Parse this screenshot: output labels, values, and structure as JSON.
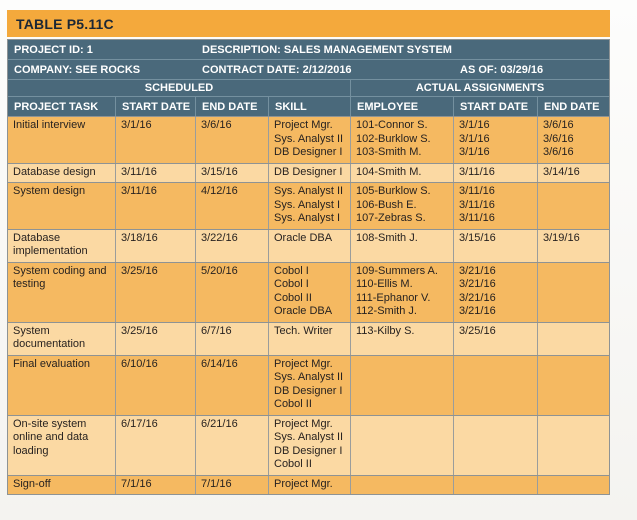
{
  "title": "TABLE P5.11C",
  "info": {
    "project_id": "PROJECT ID: 1",
    "description": "DESCRIPTION: SALES MANAGEMENT SYSTEM",
    "company": "COMPANY: SEE ROCKS",
    "contract_date": "CONTRACT DATE: 2/12/2016",
    "as_of": "AS OF: 03/29/16"
  },
  "groups": {
    "scheduled": "SCHEDULED",
    "actual": "ACTUAL ASSIGNMENTS"
  },
  "columns": [
    "PROJECT TASK",
    "START DATE",
    "END DATE",
    "SKILL",
    "EMPLOYEE",
    "START DATE",
    "END DATE"
  ],
  "rows": [
    {
      "task": "Initial interview",
      "start": "3/1/16",
      "end": "3/6/16",
      "skills": [
        "Project Mgr.",
        "Sys. Analyst II",
        "DB Designer I"
      ],
      "employees": [
        "101-Connor S.",
        "102-Burklow S.",
        "103-Smith M."
      ],
      "actual_start": [
        "3/1/16",
        "3/1/16",
        "3/1/16"
      ],
      "actual_end": [
        "3/6/16",
        "3/6/16",
        "3/6/16"
      ]
    },
    {
      "task": "Database design",
      "start": "3/11/16",
      "end": "3/15/16",
      "skills": [
        "DB Designer I"
      ],
      "employees": [
        "104-Smith M."
      ],
      "actual_start": [
        "3/11/16"
      ],
      "actual_end": [
        "3/14/16"
      ]
    },
    {
      "task": "System design",
      "start": "3/11/16",
      "end": "4/12/16",
      "skills": [
        "Sys. Analyst II",
        "Sys. Analyst I",
        "Sys. Analyst I"
      ],
      "employees": [
        "105-Burklow S.",
        "106-Bush E.",
        "107-Zebras S."
      ],
      "actual_start": [
        "3/11/16",
        "3/11/16",
        "3/11/16"
      ],
      "actual_end": []
    },
    {
      "task": "Database implementation",
      "start": "3/18/16",
      "end": "3/22/16",
      "skills": [
        "Oracle DBA"
      ],
      "employees": [
        "108-Smith J."
      ],
      "actual_start": [
        "3/15/16"
      ],
      "actual_end": [
        "3/19/16"
      ]
    },
    {
      "task": "System coding and testing",
      "start": "3/25/16",
      "end": "5/20/16",
      "skills": [
        "Cobol I",
        "Cobol I",
        "Cobol II",
        "Oracle DBA"
      ],
      "employees": [
        "109-Summers A.",
        "110-Ellis M.",
        "111-Ephanor V.",
        "112-Smith J."
      ],
      "actual_start": [
        "3/21/16",
        "3/21/16",
        "3/21/16",
        "3/21/16"
      ],
      "actual_end": []
    },
    {
      "task": "System documentation",
      "start": "3/25/16",
      "end": "6/7/16",
      "skills": [
        "Tech. Writer"
      ],
      "employees": [
        "113-Kilby S."
      ],
      "actual_start": [
        "3/25/16"
      ],
      "actual_end": []
    },
    {
      "task": "Final evaluation",
      "start": "6/10/16",
      "end": "6/14/16",
      "skills": [
        "Project Mgr.",
        "Sys. Analyst II",
        "DB Designer I",
        "Cobol II"
      ],
      "employees": [],
      "actual_start": [],
      "actual_end": []
    },
    {
      "task": "On-site system online and data loading",
      "start": "6/17/16",
      "end": "6/21/16",
      "skills": [
        "Project Mgr.",
        "Sys. Analyst II",
        "DB Designer I",
        "Cobol II"
      ],
      "employees": [],
      "actual_start": [],
      "actual_end": []
    },
    {
      "task": "Sign-off",
      "start": "7/1/16",
      "end": "7/1/16",
      "skills": [
        "Project Mgr."
      ],
      "employees": [],
      "actual_start": [],
      "actual_end": []
    }
  ],
  "colors": {
    "title_bar_orange": "#F4A93C",
    "header_slate": "#4A697B",
    "row_dark_orange": "#F5B961",
    "row_light_orange": "#FBD9A3",
    "grid_border_gray": "#8e9394",
    "title_text": "#1b2735",
    "header_text": "#ffffff",
    "body_text": "#272220"
  }
}
